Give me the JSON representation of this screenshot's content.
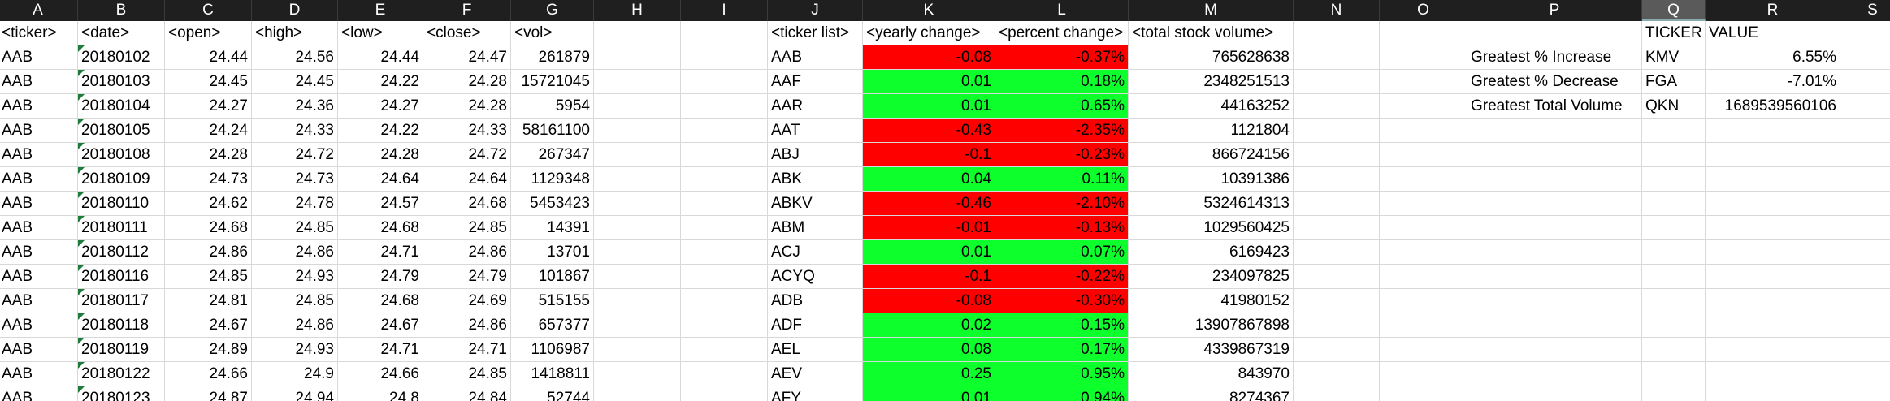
{
  "columns": [
    "A",
    "B",
    "C",
    "D",
    "E",
    "F",
    "G",
    "H",
    "I",
    "J",
    "K",
    "L",
    "M",
    "N",
    "O",
    "P",
    "Q",
    "R",
    "S"
  ],
  "selected_column": "Q",
  "headers": {
    "A": "<ticker>",
    "B": "<date>",
    "C": "<open>",
    "D": "<high>",
    "E": "<low>",
    "F": "<close>",
    "G": "<vol>",
    "J": "<ticker list>",
    "K": "<yearly change>",
    "L": "<percent change>",
    "M": "<total stock volume>",
    "Q": "TICKER",
    "R": "VALUE"
  },
  "raw_rows": [
    [
      "AAB",
      "20180102",
      "24.44",
      "24.56",
      "24.44",
      "24.47",
      "261879"
    ],
    [
      "AAB",
      "20180103",
      "24.45",
      "24.45",
      "24.22",
      "24.28",
      "15721045"
    ],
    [
      "AAB",
      "20180104",
      "24.27",
      "24.36",
      "24.27",
      "24.28",
      "5954"
    ],
    [
      "AAB",
      "20180105",
      "24.24",
      "24.33",
      "24.22",
      "24.33",
      "58161100"
    ],
    [
      "AAB",
      "20180108",
      "24.28",
      "24.72",
      "24.28",
      "24.72",
      "267347"
    ],
    [
      "AAB",
      "20180109",
      "24.73",
      "24.73",
      "24.64",
      "24.64",
      "1129348"
    ],
    [
      "AAB",
      "20180110",
      "24.62",
      "24.78",
      "24.57",
      "24.68",
      "5453423"
    ],
    [
      "AAB",
      "20180111",
      "24.68",
      "24.85",
      "24.68",
      "24.85",
      "14391"
    ],
    [
      "AAB",
      "20180112",
      "24.86",
      "24.86",
      "24.71",
      "24.86",
      "13701"
    ],
    [
      "AAB",
      "20180116",
      "24.85",
      "24.93",
      "24.79",
      "24.79",
      "101867"
    ],
    [
      "AAB",
      "20180117",
      "24.81",
      "24.85",
      "24.68",
      "24.69",
      "515155"
    ],
    [
      "AAB",
      "20180118",
      "24.67",
      "24.86",
      "24.67",
      "24.86",
      "657377"
    ],
    [
      "AAB",
      "20180119",
      "24.89",
      "24.93",
      "24.71",
      "24.71",
      "1106987"
    ],
    [
      "AAB",
      "20180122",
      "24.66",
      "24.9",
      "24.66",
      "24.85",
      "1418811"
    ],
    [
      "AAB",
      "20180123",
      "24.87",
      "24.94",
      "24.8",
      "24.84",
      "52744"
    ]
  ],
  "summary_rows": [
    {
      "ticker": "AAB",
      "change": "-0.08",
      "percent": "-0.37%",
      "volume": "765628638",
      "status": "red"
    },
    {
      "ticker": "AAF",
      "change": "0.01",
      "percent": "0.18%",
      "volume": "2348251513",
      "status": "green"
    },
    {
      "ticker": "AAR",
      "change": "0.01",
      "percent": "0.65%",
      "volume": "44163252",
      "status": "green"
    },
    {
      "ticker": "AAT",
      "change": "-0.43",
      "percent": "-2.35%",
      "volume": "1121804",
      "status": "red"
    },
    {
      "ticker": "ABJ",
      "change": "-0.1",
      "percent": "-0.23%",
      "volume": "866724156",
      "status": "red"
    },
    {
      "ticker": "ABK",
      "change": "0.04",
      "percent": "0.11%",
      "volume": "10391386",
      "status": "green"
    },
    {
      "ticker": "ABKV",
      "change": "-0.46",
      "percent": "-2.10%",
      "volume": "5324614313",
      "status": "red"
    },
    {
      "ticker": "ABM",
      "change": "-0.01",
      "percent": "-0.13%",
      "volume": "1029560425",
      "status": "red"
    },
    {
      "ticker": "ACJ",
      "change": "0.01",
      "percent": "0.07%",
      "volume": "6169423",
      "status": "green"
    },
    {
      "ticker": "ACYQ",
      "change": "-0.1",
      "percent": "-0.22%",
      "volume": "234097825",
      "status": "red"
    },
    {
      "ticker": "ADB",
      "change": "-0.08",
      "percent": "-0.30%",
      "volume": "41980152",
      "status": "red"
    },
    {
      "ticker": "ADF",
      "change": "0.02",
      "percent": "0.15%",
      "volume": "13907867898",
      "status": "green"
    },
    {
      "ticker": "AEL",
      "change": "0.08",
      "percent": "0.17%",
      "volume": "4339867319",
      "status": "green"
    },
    {
      "ticker": "AEV",
      "change": "0.25",
      "percent": "0.95%",
      "volume": "843970",
      "status": "green"
    },
    {
      "ticker": "AFY",
      "change": "0.01",
      "percent": "0.94%",
      "volume": "8274367",
      "status": "green"
    }
  ],
  "greatest": [
    {
      "label": "Greatest % Increase",
      "ticker": "KMV",
      "value": "6.55%"
    },
    {
      "label": "Greatest % Decrease",
      "ticker": "FGA",
      "value": "-7.01%"
    },
    {
      "label": "Greatest Total Volume",
      "ticker": "QKN",
      "value": "1689539560106"
    }
  ],
  "colors": {
    "negative": "#ff0000",
    "positive": "#0dff2c",
    "header_bg": "#1f1f1f"
  }
}
